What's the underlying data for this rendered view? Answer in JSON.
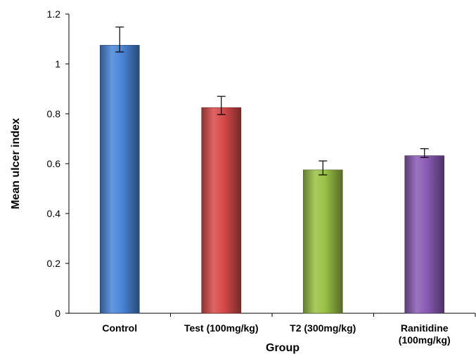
{
  "chart_data": {
    "type": "bar",
    "title": "",
    "xlabel": "Group",
    "ylabel": "Mean ulcer index",
    "ylim": [
      0,
      1.2
    ],
    "yticks": [
      "0",
      "0.2",
      "0.4",
      "0.6",
      "0.8",
      "1",
      "1.2"
    ],
    "categories": [
      {
        "label": "Control",
        "label_lines": [
          "Control"
        ]
      },
      {
        "label": "Test (100mg/kg)",
        "label_lines": [
          "Test (100mg/kg)"
        ]
      },
      {
        "label": "T2 (300mg/kg)",
        "label_lines": [
          "T2 (300mg/kg)"
        ]
      },
      {
        "label": "Ranitidine (100mg/kg)",
        "label_lines": [
          "Ranitidine",
          "(100mg/kg)"
        ]
      }
    ],
    "values": [
      1.075,
      0.825,
      0.575,
      0.632
    ],
    "error_low": [
      1.048,
      0.797,
      0.555,
      0.625
    ],
    "error_high": [
      1.148,
      0.87,
      0.611,
      0.66
    ],
    "colors": [
      "#4a86d8",
      "#d84a4a",
      "#9ac245",
      "#8a5cb5"
    ],
    "grid": false,
    "legend": "none"
  }
}
